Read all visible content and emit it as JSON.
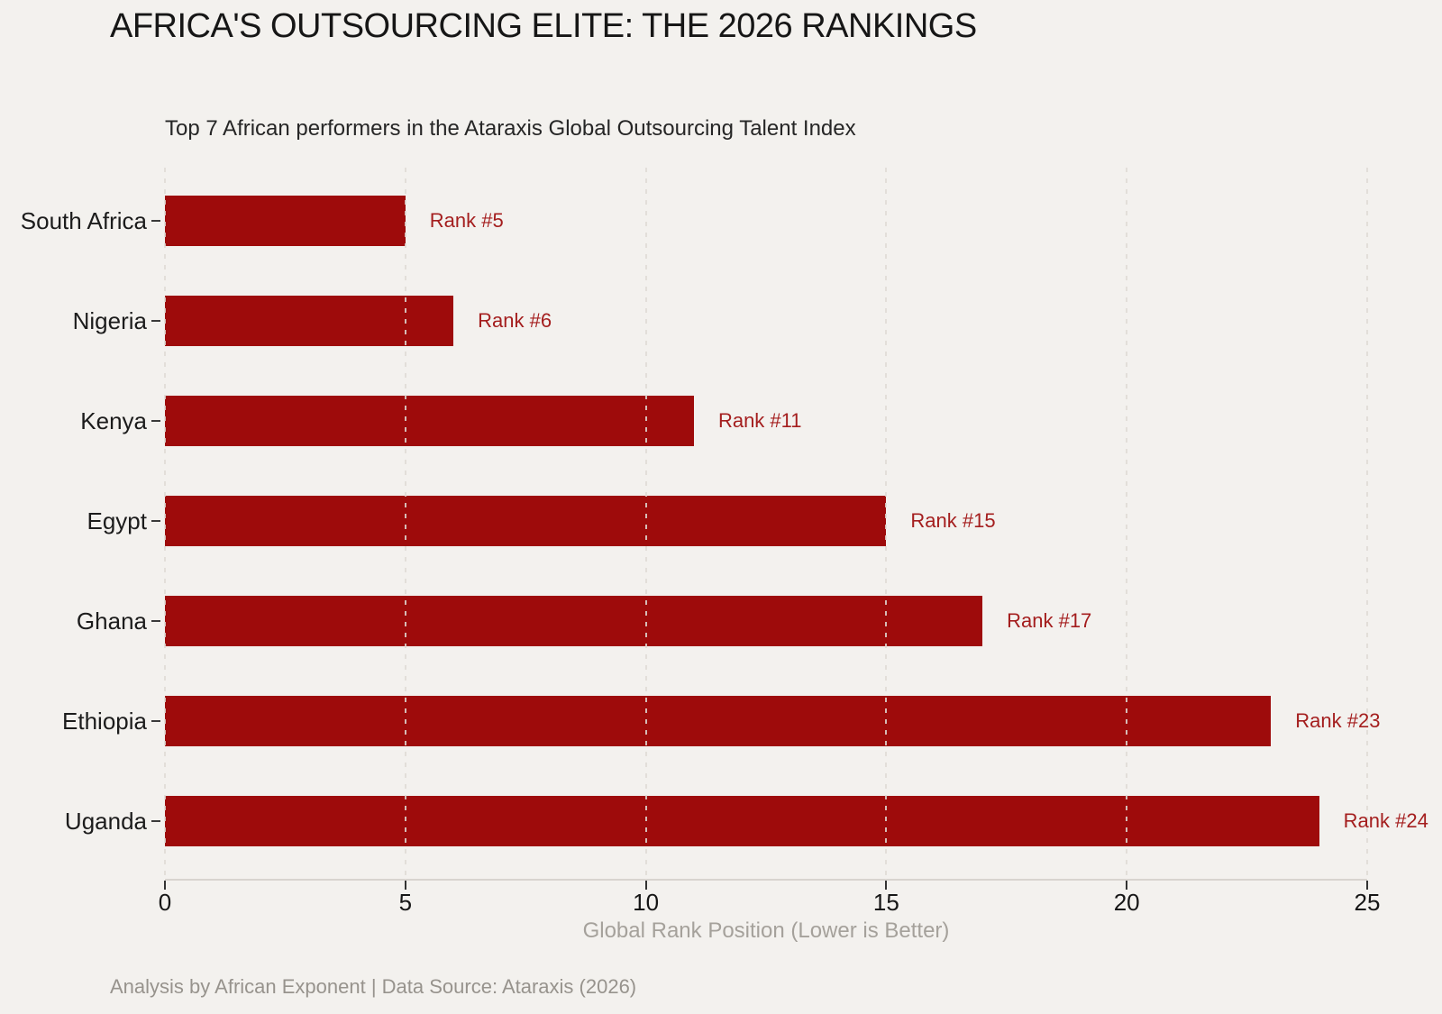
{
  "chart_data": {
    "type": "bar",
    "orientation": "horizontal",
    "title": "AFRICA'S OUTSOURCING ELITE: THE 2026 RANKINGS",
    "subtitle": "Top 7 African performers in the Ataraxis Global Outsourcing Talent Index",
    "categories": [
      "South Africa",
      "Nigeria",
      "Kenya",
      "Egypt",
      "Ghana",
      "Ethiopia",
      "Uganda"
    ],
    "values": [
      5,
      6,
      11,
      15,
      17,
      23,
      24
    ],
    "bar_labels": [
      "Rank #5",
      "Rank #6",
      "Rank #11",
      "Rank #15",
      "Rank #17",
      "Rank #23",
      "Rank #24"
    ],
    "xlabel": "Global Rank Position (Lower is Better)",
    "ylabel": "",
    "xlim": [
      0,
      25
    ],
    "xticks": [
      0,
      5,
      10,
      15,
      20,
      25
    ],
    "grid": "vertical-dashed-overlay",
    "legend": "none",
    "footer": "Analysis by African Exponent | Data Source: Ataraxis (2026)",
    "colors": {
      "background": "#F3F1EE",
      "bar": "#9E0B0B",
      "bar_label": "#A41E1E",
      "axis_line": "#D8D4CF",
      "gridline": "#DFDBD5",
      "tick_mark": "#333333",
      "tick_text": "#161616",
      "category_text": "#1C1C1C",
      "axis_title_text": "#A5A19B",
      "footer_text": "#97938D"
    }
  }
}
